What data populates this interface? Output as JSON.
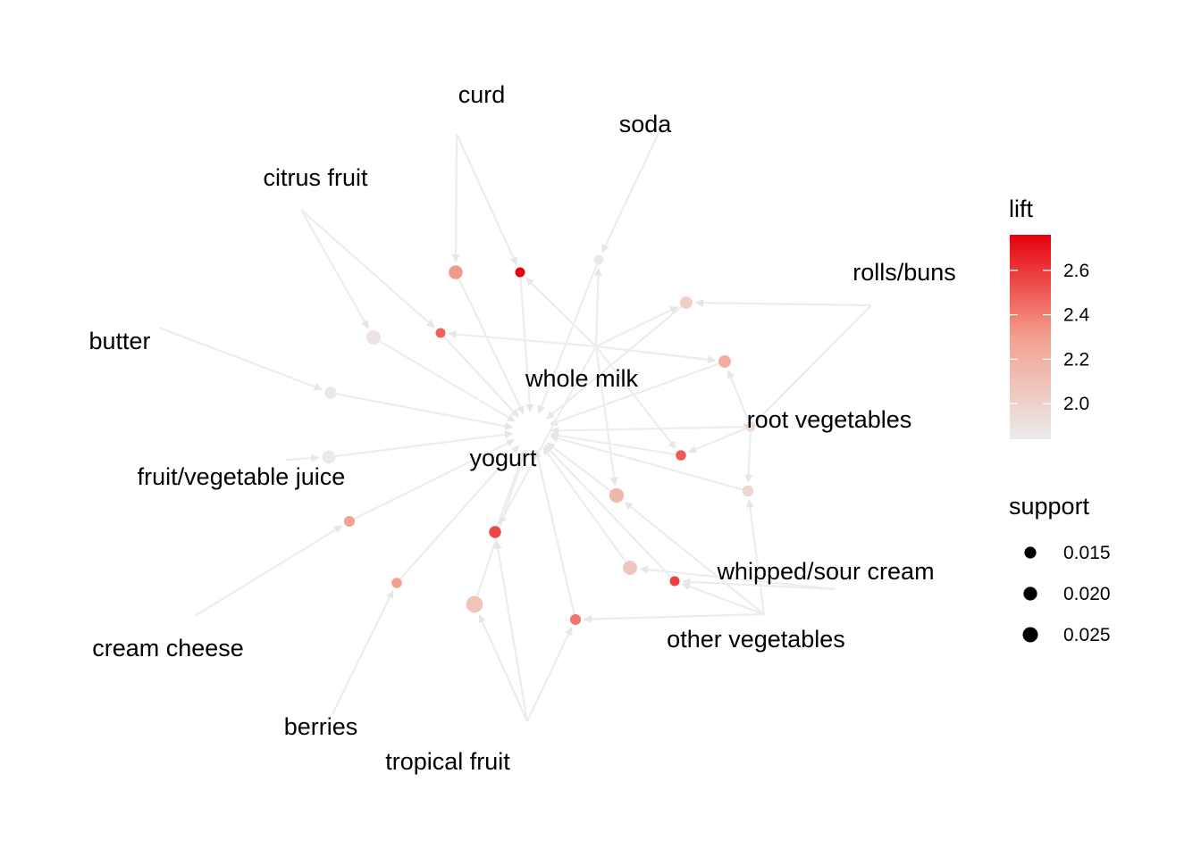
{
  "chart_data": {
    "type": "network",
    "items": [
      "curd",
      "soda",
      "citrus fruit",
      "rolls/buns",
      "butter",
      "whole milk",
      "root vegetables",
      "yogurt",
      "fruit/vegetable juice",
      "whipped/sour cream",
      "cream cheese",
      "other vegetables",
      "berries",
      "tropical fruit"
    ],
    "rules": [
      {
        "lhs": [
          "curd"
        ],
        "rhs": "yogurt",
        "support": 0.02,
        "lift": 2.32
      },
      {
        "lhs": [
          "curd",
          "whole milk"
        ],
        "rhs": "yogurt",
        "support": 0.01,
        "lift": 2.76
      },
      {
        "lhs": [
          "soda",
          "whole milk"
        ],
        "rhs": "yogurt",
        "support": 0.01,
        "lift": 1.85
      },
      {
        "lhs": [
          "citrus fruit"
        ],
        "rhs": "yogurt",
        "support": 0.022,
        "lift": 1.88
      },
      {
        "lhs": [
          "citrus fruit",
          "whole milk"
        ],
        "rhs": "yogurt",
        "support": 0.01,
        "lift": 2.48
      },
      {
        "lhs": [
          "rolls/buns",
          "whole milk"
        ],
        "rhs": "yogurt",
        "support": 0.016,
        "lift": 2.02
      },
      {
        "lhs": [
          "root vegetables",
          "whole milk"
        ],
        "rhs": "yogurt",
        "support": 0.016,
        "lift": 2.22
      },
      {
        "lhs": [
          "root vegetables",
          "rolls/buns"
        ],
        "rhs": "yogurt",
        "support": 0.01,
        "lift": 1.95
      },
      {
        "lhs": [
          "butter"
        ],
        "rhs": "yogurt",
        "support": 0.015,
        "lift": 1.86
      },
      {
        "lhs": [
          "fruit/vegetable juice"
        ],
        "rhs": "yogurt",
        "support": 0.018,
        "lift": 1.84
      },
      {
        "lhs": [
          "cream cheese"
        ],
        "rhs": "yogurt",
        "support": 0.012,
        "lift": 2.28
      },
      {
        "lhs": [
          "berries"
        ],
        "rhs": "yogurt",
        "support": 0.011,
        "lift": 2.3
      },
      {
        "lhs": [
          "tropical fruit"
        ],
        "rhs": "yogurt",
        "support": 0.029,
        "lift": 2.08
      },
      {
        "lhs": [
          "tropical fruit",
          "whole milk"
        ],
        "rhs": "yogurt",
        "support": 0.015,
        "lift": 2.56
      },
      {
        "lhs": [
          "tropical fruit",
          "other vegetables"
        ],
        "rhs": "yogurt",
        "support": 0.012,
        "lift": 2.42
      },
      {
        "lhs": [
          "whipped/sour cream"
        ],
        "rhs": "yogurt",
        "support": 0.021,
        "lift": 2.07
      },
      {
        "lhs": [
          "whipped/sour cream",
          "other vegetables"
        ],
        "rhs": "yogurt",
        "support": 0.01,
        "lift": 2.58
      },
      {
        "lhs": [
          "other vegetables",
          "whole milk"
        ],
        "rhs": "yogurt",
        "support": 0.022,
        "lift": 2.15
      },
      {
        "lhs": [
          "root vegetables",
          "other vegetables"
        ],
        "rhs": "yogurt",
        "support": 0.013,
        "lift": 1.97
      },
      {
        "lhs": [
          "whole milk",
          "root vegetables"
        ],
        "rhs": "yogurt",
        "support": 0.011,
        "lift": 2.5
      }
    ],
    "lift_legend": {
      "title": "lift",
      "ticks": [
        "2.6",
        "2.4",
        "2.2",
        "2.0"
      ],
      "range": [
        1.84,
        2.76
      ],
      "color_low": "#ebebeb",
      "color_high": "#e8000b"
    },
    "support_legend": {
      "title": "support",
      "ticks": [
        "0.015",
        "0.020",
        "0.025"
      ]
    },
    "edge_color": "#ededed",
    "grid": false,
    "legend_position": "right"
  }
}
